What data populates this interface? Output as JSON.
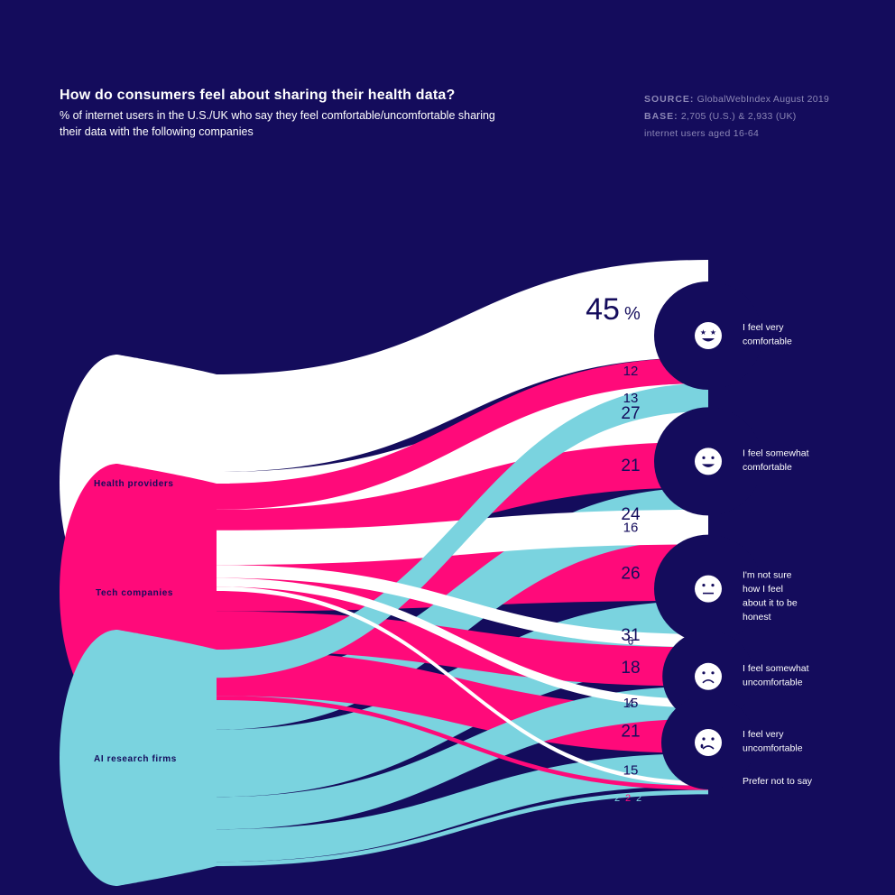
{
  "header": {
    "title": "How do consumers feel about sharing their health data?",
    "subtitle": "% of internet users in the U.S./UK who say they feel comfortable/uncomfortable sharing their data with the following companies",
    "source_label": "SOURCE:",
    "source_value": "GlobalWebIndex August 2019",
    "base_label": "BASE:",
    "base_value": "2,705 (U.S.) & 2,933 (UK)",
    "base_note": "internet users aged 16-64"
  },
  "colors": {
    "background": "#140c5c",
    "health": "#ffffff",
    "tech": "#ff0a7a",
    "ai": "#7ad3df",
    "icon": "#ffffff",
    "label_dark": "#140c5c"
  },
  "chart_data": {
    "type": "sankey",
    "title": "How do consumers feel about sharing their health data?",
    "unit": "%",
    "sources": [
      {
        "key": "health",
        "label": "Health providers"
      },
      {
        "key": "tech",
        "label": "Tech companies"
      },
      {
        "key": "ai",
        "label": "AI research firms"
      }
    ],
    "targets": [
      {
        "key": "very_comfortable",
        "label": "I feel very comfortable",
        "icon": "star-eyes-face-icon"
      },
      {
        "key": "somewhat_comfortable",
        "label": "I feel somewhat comfortable",
        "icon": "smiling-face-icon"
      },
      {
        "key": "not_sure",
        "label": "I'm not sure how I feel about it to be honest",
        "icon": "neutral-face-icon"
      },
      {
        "key": "somewhat_uncomfortable",
        "label": "I feel somewhat uncomfortable",
        "icon": "frowning-face-icon"
      },
      {
        "key": "very_uncomfortable",
        "label": "I feel very uncomfortable",
        "icon": "crying-face-icon"
      },
      {
        "key": "prefer_not",
        "label": "Prefer not to say",
        "icon": ""
      }
    ],
    "flows": {
      "health": [
        45,
        27,
        16,
        6,
        4,
        2
      ],
      "tech": [
        12,
        21,
        26,
        18,
        21,
        2
      ],
      "ai": [
        13,
        24,
        31,
        15,
        15,
        2
      ]
    },
    "value_labels": {
      "health": [
        "45",
        "27",
        "16",
        "6",
        "4",
        "2"
      ],
      "tech": [
        "12",
        "21",
        "26",
        "18",
        "21",
        "2"
      ],
      "ai": [
        "13",
        "24",
        "31",
        "15",
        "15",
        "2"
      ]
    },
    "percent_sign": "%"
  }
}
